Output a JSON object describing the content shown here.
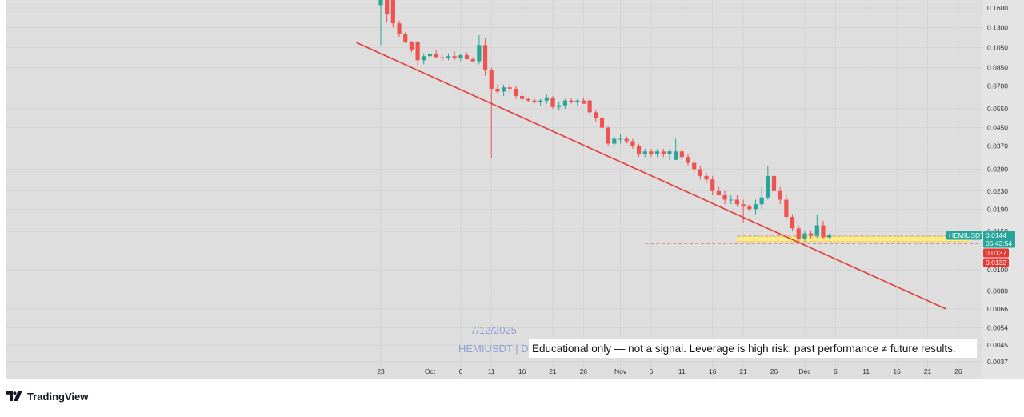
{
  "brand": {
    "name": "TradingView"
  },
  "watermark": {
    "date": "7/12/2025",
    "symbol_prefix": "HEMIUSDT | D"
  },
  "disclaimer": "Educational only — not a signal. Leverage is high risk; past performance ≠ future results.",
  "price_badges": [
    {
      "kind": "symbol",
      "text": "HEMIUSDT",
      "color": "#26a69a"
    },
    {
      "kind": "last_price",
      "text": "0.0144",
      "color": "#26a69a"
    },
    {
      "kind": "countdown",
      "text": "05:43:54",
      "color": "#26a69a"
    },
    {
      "kind": "level",
      "text": "0.0137",
      "color": "#e53935"
    },
    {
      "kind": "level",
      "text": "0.0132",
      "color": "#e53935"
    }
  ],
  "colors": {
    "up": "#26a69a",
    "down": "#ef5350",
    "trendline": "#e53935",
    "zone": "#fff176",
    "background": "#dedede"
  },
  "chart_data": {
    "type": "candlestick",
    "symbol": "HEMIUSDT",
    "timeframe": "D",
    "y_scale": "log",
    "y_range": [
      0.0037,
      0.19
    ],
    "y_ticks": [
      "0.1600",
      "0.1300",
      "0.1050",
      "0.0850",
      "0.0700",
      "0.0550",
      "0.0450",
      "0.0370",
      "0.0290",
      "0.0230",
      "0.0190",
      "0.0150",
      "0.0100",
      "0.0080",
      "0.0066",
      "0.0054",
      "0.0045",
      "0.0037"
    ],
    "x_ticks": [
      {
        "label": "23",
        "date": "2025-09-23"
      },
      {
        "label": "Oct",
        "date": "2025-10-01"
      },
      {
        "label": "6",
        "date": "2025-10-06"
      },
      {
        "label": "11",
        "date": "2025-10-11"
      },
      {
        "label": "16",
        "date": "2025-10-16"
      },
      {
        "label": "21",
        "date": "2025-10-21"
      },
      {
        "label": "26",
        "date": "2025-10-26"
      },
      {
        "label": "Nov",
        "date": "2025-11-01"
      },
      {
        "label": "6",
        "date": "2025-11-06"
      },
      {
        "label": "11",
        "date": "2025-11-11"
      },
      {
        "label": "16",
        "date": "2025-11-16"
      },
      {
        "label": "21",
        "date": "2025-11-21"
      },
      {
        "label": "26",
        "date": "2025-11-26"
      },
      {
        "label": "Dec",
        "date": "2025-12-01"
      },
      {
        "label": "6",
        "date": "2025-12-06"
      },
      {
        "label": "11",
        "date": "2025-12-11"
      },
      {
        "label": "16",
        "date": "2025-12-16"
      },
      {
        "label": "21",
        "date": "2025-12-21"
      },
      {
        "label": "26",
        "date": "2025-12-26"
      }
    ],
    "grid": true,
    "candles": [
      {
        "date": "2025-09-23",
        "o": 0.165,
        "h": 0.2,
        "l": 0.108,
        "c": 0.2
      },
      {
        "date": "2025-09-24",
        "o": 0.2,
        "h": 0.2,
        "l": 0.137,
        "c": 0.15
      },
      {
        "date": "2025-09-25",
        "o": 0.19,
        "h": 0.2,
        "l": 0.13,
        "c": 0.136
      },
      {
        "date": "2025-09-26",
        "o": 0.136,
        "h": 0.14,
        "l": 0.118,
        "c": 0.121
      },
      {
        "date": "2025-09-27",
        "o": 0.121,
        "h": 0.124,
        "l": 0.11,
        "c": 0.112
      },
      {
        "date": "2025-09-28",
        "o": 0.112,
        "h": 0.113,
        "l": 0.1,
        "c": 0.103
      },
      {
        "date": "2025-09-29",
        "o": 0.112,
        "h": 0.113,
        "l": 0.086,
        "c": 0.092
      },
      {
        "date": "2025-09-30",
        "o": 0.092,
        "h": 0.099,
        "l": 0.088,
        "c": 0.096
      },
      {
        "date": "2025-10-01",
        "o": 0.096,
        "h": 0.101,
        "l": 0.09,
        "c": 0.098
      },
      {
        "date": "2025-10-02",
        "o": 0.098,
        "h": 0.102,
        "l": 0.094,
        "c": 0.095
      },
      {
        "date": "2025-10-03",
        "o": 0.095,
        "h": 0.098,
        "l": 0.091,
        "c": 0.094
      },
      {
        "date": "2025-10-04",
        "o": 0.094,
        "h": 0.099,
        "l": 0.092,
        "c": 0.096
      },
      {
        "date": "2025-10-05",
        "o": 0.096,
        "h": 0.101,
        "l": 0.092,
        "c": 0.094
      },
      {
        "date": "2025-10-06",
        "o": 0.094,
        "h": 0.099,
        "l": 0.091,
        "c": 0.097
      },
      {
        "date": "2025-10-07",
        "o": 0.097,
        "h": 0.1,
        "l": 0.094,
        "c": 0.093
      },
      {
        "date": "2025-10-08",
        "o": 0.093,
        "h": 0.095,
        "l": 0.09,
        "c": 0.091
      },
      {
        "date": "2025-10-09",
        "o": 0.091,
        "h": 0.12,
        "l": 0.088,
        "c": 0.108
      },
      {
        "date": "2025-10-10",
        "o": 0.108,
        "h": 0.116,
        "l": 0.078,
        "c": 0.083
      },
      {
        "date": "2025-10-11",
        "o": 0.083,
        "h": 0.085,
        "l": 0.0325,
        "c": 0.068
      },
      {
        "date": "2025-10-12",
        "o": 0.068,
        "h": 0.071,
        "l": 0.064,
        "c": 0.066
      },
      {
        "date": "2025-10-13",
        "o": 0.066,
        "h": 0.071,
        "l": 0.063,
        "c": 0.069
      },
      {
        "date": "2025-10-14",
        "o": 0.069,
        "h": 0.072,
        "l": 0.065,
        "c": 0.068
      },
      {
        "date": "2025-10-15",
        "o": 0.068,
        "h": 0.07,
        "l": 0.061,
        "c": 0.063
      },
      {
        "date": "2025-10-16",
        "o": 0.063,
        "h": 0.065,
        "l": 0.059,
        "c": 0.061
      },
      {
        "date": "2025-10-17",
        "o": 0.061,
        "h": 0.062,
        "l": 0.059,
        "c": 0.06
      },
      {
        "date": "2025-10-18",
        "o": 0.06,
        "h": 0.062,
        "l": 0.058,
        "c": 0.059
      },
      {
        "date": "2025-10-19",
        "o": 0.059,
        "h": 0.061,
        "l": 0.057,
        "c": 0.06
      },
      {
        "date": "2025-10-20",
        "o": 0.06,
        "h": 0.064,
        "l": 0.058,
        "c": 0.062
      },
      {
        "date": "2025-10-21",
        "o": 0.062,
        "h": 0.063,
        "l": 0.055,
        "c": 0.056
      },
      {
        "date": "2025-10-22",
        "o": 0.056,
        "h": 0.059,
        "l": 0.054,
        "c": 0.057
      },
      {
        "date": "2025-10-23",
        "o": 0.057,
        "h": 0.061,
        "l": 0.055,
        "c": 0.06
      },
      {
        "date": "2025-10-24",
        "o": 0.06,
        "h": 0.062,
        "l": 0.058,
        "c": 0.059
      },
      {
        "date": "2025-10-25",
        "o": 0.059,
        "h": 0.061,
        "l": 0.057,
        "c": 0.06
      },
      {
        "date": "2025-10-26",
        "o": 0.06,
        "h": 0.062,
        "l": 0.058,
        "c": 0.058
      },
      {
        "date": "2025-10-27",
        "o": 0.06,
        "h": 0.061,
        "l": 0.052,
        "c": 0.053
      },
      {
        "date": "2025-10-28",
        "o": 0.053,
        "h": 0.054,
        "l": 0.048,
        "c": 0.05
      },
      {
        "date": "2025-10-29",
        "o": 0.05,
        "h": 0.051,
        "l": 0.044,
        "c": 0.045
      },
      {
        "date": "2025-10-30",
        "o": 0.045,
        "h": 0.046,
        "l": 0.037,
        "c": 0.038
      },
      {
        "date": "2025-10-31",
        "o": 0.038,
        "h": 0.041,
        "l": 0.037,
        "c": 0.04
      },
      {
        "date": "2025-11-01",
        "o": 0.04,
        "h": 0.042,
        "l": 0.038,
        "c": 0.04
      },
      {
        "date": "2025-11-02",
        "o": 0.04,
        "h": 0.041,
        "l": 0.038,
        "c": 0.039
      },
      {
        "date": "2025-11-03",
        "o": 0.039,
        "h": 0.04,
        "l": 0.036,
        "c": 0.037
      },
      {
        "date": "2025-11-04",
        "o": 0.037,
        "h": 0.038,
        "l": 0.033,
        "c": 0.034
      },
      {
        "date": "2025-11-05",
        "o": 0.034,
        "h": 0.036,
        "l": 0.033,
        "c": 0.035
      },
      {
        "date": "2025-11-06",
        "o": 0.035,
        "h": 0.036,
        "l": 0.033,
        "c": 0.034
      },
      {
        "date": "2025-11-07",
        "o": 0.034,
        "h": 0.036,
        "l": 0.033,
        "c": 0.035
      },
      {
        "date": "2025-11-08",
        "o": 0.035,
        "h": 0.036,
        "l": 0.033,
        "c": 0.034
      },
      {
        "date": "2025-11-09",
        "o": 0.034,
        "h": 0.036,
        "l": 0.032,
        "c": 0.035
      },
      {
        "date": "2025-11-10",
        "o": 0.032,
        "h": 0.04,
        "l": 0.032,
        "c": 0.035
      },
      {
        "date": "2025-11-11",
        "o": 0.035,
        "h": 0.036,
        "l": 0.032,
        "c": 0.033
      },
      {
        "date": "2025-11-12",
        "o": 0.033,
        "h": 0.034,
        "l": 0.03,
        "c": 0.031
      },
      {
        "date": "2025-11-13",
        "o": 0.031,
        "h": 0.032,
        "l": 0.028,
        "c": 0.029
      },
      {
        "date": "2025-11-14",
        "o": 0.029,
        "h": 0.03,
        "l": 0.026,
        "c": 0.027
      },
      {
        "date": "2025-11-15",
        "o": 0.027,
        "h": 0.028,
        "l": 0.025,
        "c": 0.026
      },
      {
        "date": "2025-11-16",
        "o": 0.026,
        "h": 0.027,
        "l": 0.022,
        "c": 0.023
      },
      {
        "date": "2025-11-17",
        "o": 0.023,
        "h": 0.024,
        "l": 0.022,
        "c": 0.022
      },
      {
        "date": "2025-11-18",
        "o": 0.022,
        "h": 0.023,
        "l": 0.02,
        "c": 0.021
      },
      {
        "date": "2025-11-19",
        "o": 0.021,
        "h": 0.022,
        "l": 0.02,
        "c": 0.021
      },
      {
        "date": "2025-11-20",
        "o": 0.021,
        "h": 0.022,
        "l": 0.0195,
        "c": 0.02
      },
      {
        "date": "2025-11-21",
        "o": 0.02,
        "h": 0.021,
        "l": 0.0165,
        "c": 0.0195
      },
      {
        "date": "2025-11-22",
        "o": 0.0195,
        "h": 0.02,
        "l": 0.0185,
        "c": 0.019
      },
      {
        "date": "2025-11-23",
        "o": 0.019,
        "h": 0.021,
        "l": 0.018,
        "c": 0.02
      },
      {
        "date": "2025-11-24",
        "o": 0.02,
        "h": 0.024,
        "l": 0.019,
        "c": 0.0215
      },
      {
        "date": "2025-11-25",
        "o": 0.0215,
        "h": 0.03,
        "l": 0.021,
        "c": 0.027
      },
      {
        "date": "2025-11-26",
        "o": 0.027,
        "h": 0.028,
        "l": 0.022,
        "c": 0.023
      },
      {
        "date": "2025-11-27",
        "o": 0.023,
        "h": 0.024,
        "l": 0.02,
        "c": 0.021
      },
      {
        "date": "2025-11-28",
        "o": 0.021,
        "h": 0.022,
        "l": 0.017,
        "c": 0.0175
      },
      {
        "date": "2025-11-29",
        "o": 0.0175,
        "h": 0.018,
        "l": 0.015,
        "c": 0.0155
      },
      {
        "date": "2025-11-30",
        "o": 0.0155,
        "h": 0.016,
        "l": 0.0133,
        "c": 0.0138
      },
      {
        "date": "2025-12-01",
        "o": 0.0138,
        "h": 0.015,
        "l": 0.0135,
        "c": 0.0147
      },
      {
        "date": "2025-12-02",
        "o": 0.0147,
        "h": 0.0152,
        "l": 0.0138,
        "c": 0.0143
      },
      {
        "date": "2025-12-03",
        "o": 0.0143,
        "h": 0.018,
        "l": 0.014,
        "c": 0.016
      },
      {
        "date": "2025-12-04",
        "o": 0.016,
        "h": 0.0168,
        "l": 0.0139,
        "c": 0.0141
      },
      {
        "date": "2025-12-05",
        "o": 0.0141,
        "h": 0.0147,
        "l": 0.0138,
        "c": 0.0144
      }
    ],
    "annotations": [
      {
        "type": "trendline",
        "from": {
          "date": "2025-09-19",
          "price": 0.111
        },
        "to": {
          "date": "2025-12-24",
          "price": 0.0066
        }
      },
      {
        "type": "zone",
        "from_date": "2025-11-20",
        "to_date": "2025-12-28",
        "low": 0.0135,
        "high": 0.0142
      },
      {
        "type": "dashed_level",
        "price": 0.0132,
        "from_date": "2025-11-05"
      },
      {
        "type": "dashed_level",
        "price": 0.0144,
        "from_date": "2025-11-20"
      }
    ]
  }
}
